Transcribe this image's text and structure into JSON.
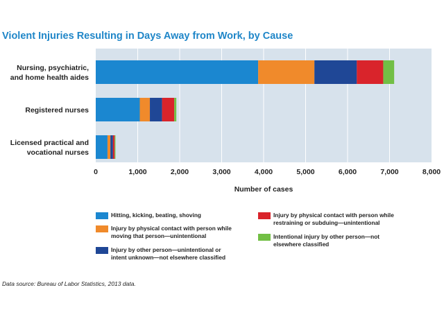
{
  "chart_data": {
    "type": "bar",
    "orientation": "horizontal",
    "stacked": true,
    "title": "Violent Injuries Resulting in Days Away from Work, by Cause",
    "xlabel": "Number of cases",
    "xlim": [
      0,
      8000
    ],
    "xticks": [
      "0",
      "1,000",
      "2,000",
      "3,000",
      "4,000",
      "5,000",
      "6,000",
      "7,000",
      "8,000"
    ],
    "categories": [
      [
        "Nursing, psychiatric,",
        "and home health aides"
      ],
      [
        "Registered nurses"
      ],
      [
        "Licensed practical and",
        "vocational nurses"
      ]
    ],
    "series": [
      {
        "name": "Hitting, kicking, beating, shoving",
        "color": "#1b87d0",
        "values": [
          3870,
          1050,
          280
        ]
      },
      {
        "name": "Injury by physical contact with person while moving that person—unintentional",
        "color": "#f08a2b",
        "values": [
          1340,
          240,
          70
        ]
      },
      {
        "name": "Injury by other person—unintentional or intent unknown—not elsewhere classified",
        "color": "#1f4796",
        "values": [
          1010,
          290,
          60
        ]
      },
      {
        "name": "Injury by physical contact with person while restraining or subduing—unintentional",
        "color": "#d9242b",
        "values": [
          630,
          290,
          40
        ]
      },
      {
        "name": "Intentional injury by other person—not elsewhere classified",
        "color": "#72bf45",
        "values": [
          260,
          50,
          20
        ]
      }
    ],
    "legend": {
      "placement": "bottom",
      "items": [
        [
          "Hitting, kicking, beating, shoving"
        ],
        [
          "Injury by physical contact with person while",
          "moving that person—unintentional"
        ],
        [
          "Injury by other person—unintentional or",
          "intent unknown—not elsewhere classified"
        ],
        [
          "Injury by physical contact with person while",
          "restraining or subduing—unintentional"
        ],
        [
          "Intentional injury by other person—not",
          "elsewhere classified"
        ]
      ]
    },
    "grid": true,
    "plot_background": "#d7e2ec",
    "source": "Data source: Bureau of Labor Statistics, 2013 data."
  }
}
